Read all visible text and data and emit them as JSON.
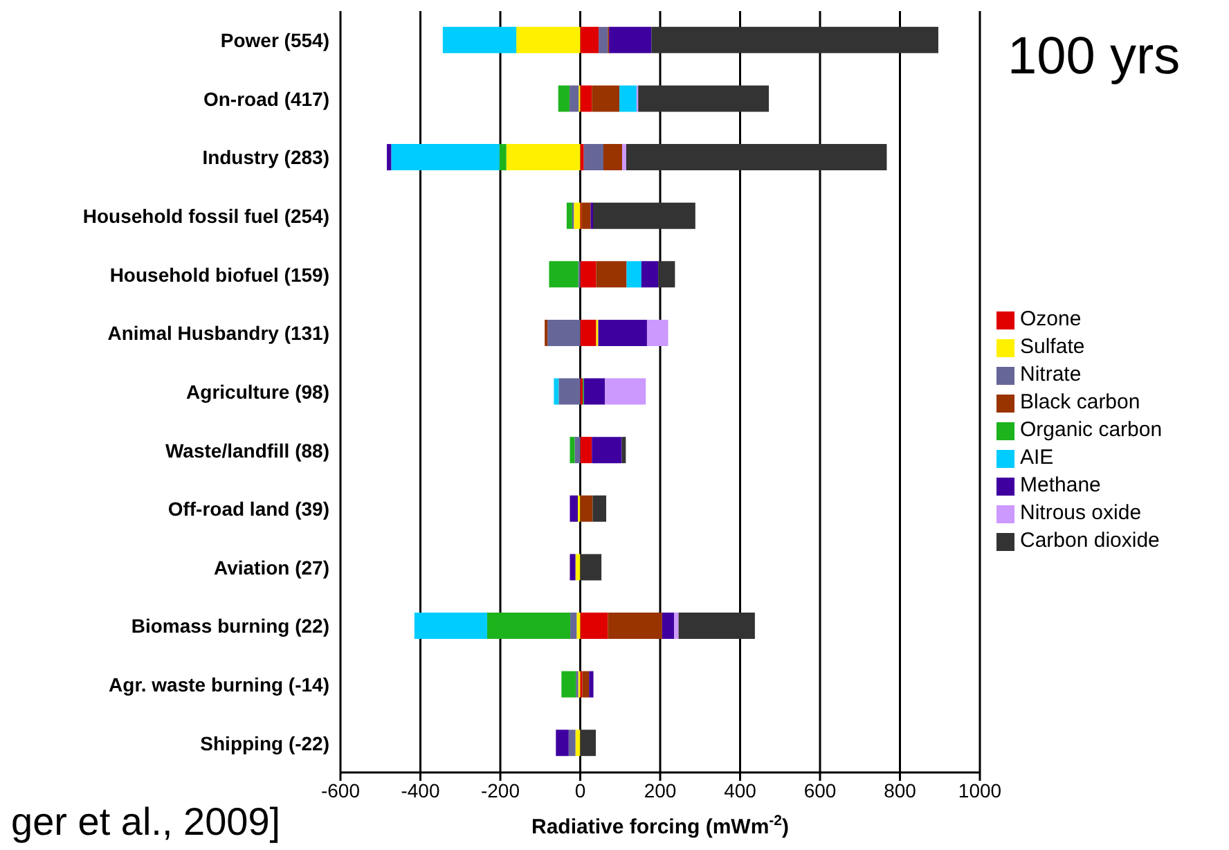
{
  "chart_data": {
    "type": "bar",
    "orientation": "horizontal",
    "stacked": true,
    "categories": [
      "Power (554)",
      "On-road (417)",
      "Industry (283)",
      "Household fossil fuel (254)",
      "Household biofuel (159)",
      "Animal Husbandry (131)",
      "Agriculture (98)",
      "Waste/landfill (88)",
      "Off-road land (39)",
      "Aviation (27)",
      "Biomass burning (22)",
      "Agr. waste burning (-14)",
      "Shipping (-22)"
    ],
    "series": [
      {
        "name": "Ozone",
        "color": "#e00000",
        "values": [
          46,
          29,
          9,
          3,
          40,
          40,
          6,
          29,
          null,
          null,
          69,
          5,
          null
        ]
      },
      {
        "name": "Sulfate",
        "color": "#fff000",
        "values": [
          -160,
          -4,
          -185,
          -16,
          null,
          5,
          null,
          null,
          -6,
          -12,
          -9,
          -5,
          -12
        ]
      },
      {
        "name": "Nitrate",
        "color": "#666699",
        "values": [
          23,
          -23,
          49,
          -4,
          -5,
          -82,
          -54,
          -14,
          null,
          null,
          -16,
          -6,
          -17
        ]
      },
      {
        "name": "Black carbon",
        "color": "#993300",
        "values": [
          3,
          69,
          47,
          23,
          76,
          -7,
          null,
          null,
          31,
          null,
          136,
          17,
          null
        ]
      },
      {
        "name": "Organic carbon",
        "color": "#1db31d",
        "values": [
          null,
          -28,
          -17,
          -14,
          -73,
          null,
          3,
          -12,
          null,
          null,
          -208,
          -36,
          null
        ]
      },
      {
        "name": "AIE",
        "color": "#00ccff",
        "values": [
          -184,
          43,
          -271,
          null,
          37,
          null,
          -12,
          null,
          null,
          null,
          -182,
          null,
          null
        ]
      },
      {
        "name": "Methane",
        "color": "#3f00a0",
        "values": [
          106,
          null,
          -11,
          6,
          42,
          122,
          53,
          75,
          -20,
          -14,
          30,
          11,
          -32
        ]
      },
      {
        "name": "Nitrous oxide",
        "color": "#cc99ff",
        "values": [
          null,
          4,
          10,
          null,
          null,
          53,
          102,
          null,
          null,
          null,
          11,
          null,
          null
        ]
      },
      {
        "name": "Carbon dioxide",
        "color": "#333333",
        "values": [
          718,
          327,
          652,
          256,
          42,
          null,
          null,
          10,
          34,
          53,
          191,
          null,
          39
        ]
      }
    ],
    "xlim": [
      -600,
      1000
    ],
    "xticks": [
      -600,
      -400,
      -200,
      0,
      200,
      400,
      600,
      800,
      1000
    ],
    "xlabel": "Radiative forcing (mWm$^{-2}$)",
    "grid": "x",
    "legend": "right",
    "annotations": [
      "100 yrs",
      "ger et al., 2009]"
    ]
  }
}
